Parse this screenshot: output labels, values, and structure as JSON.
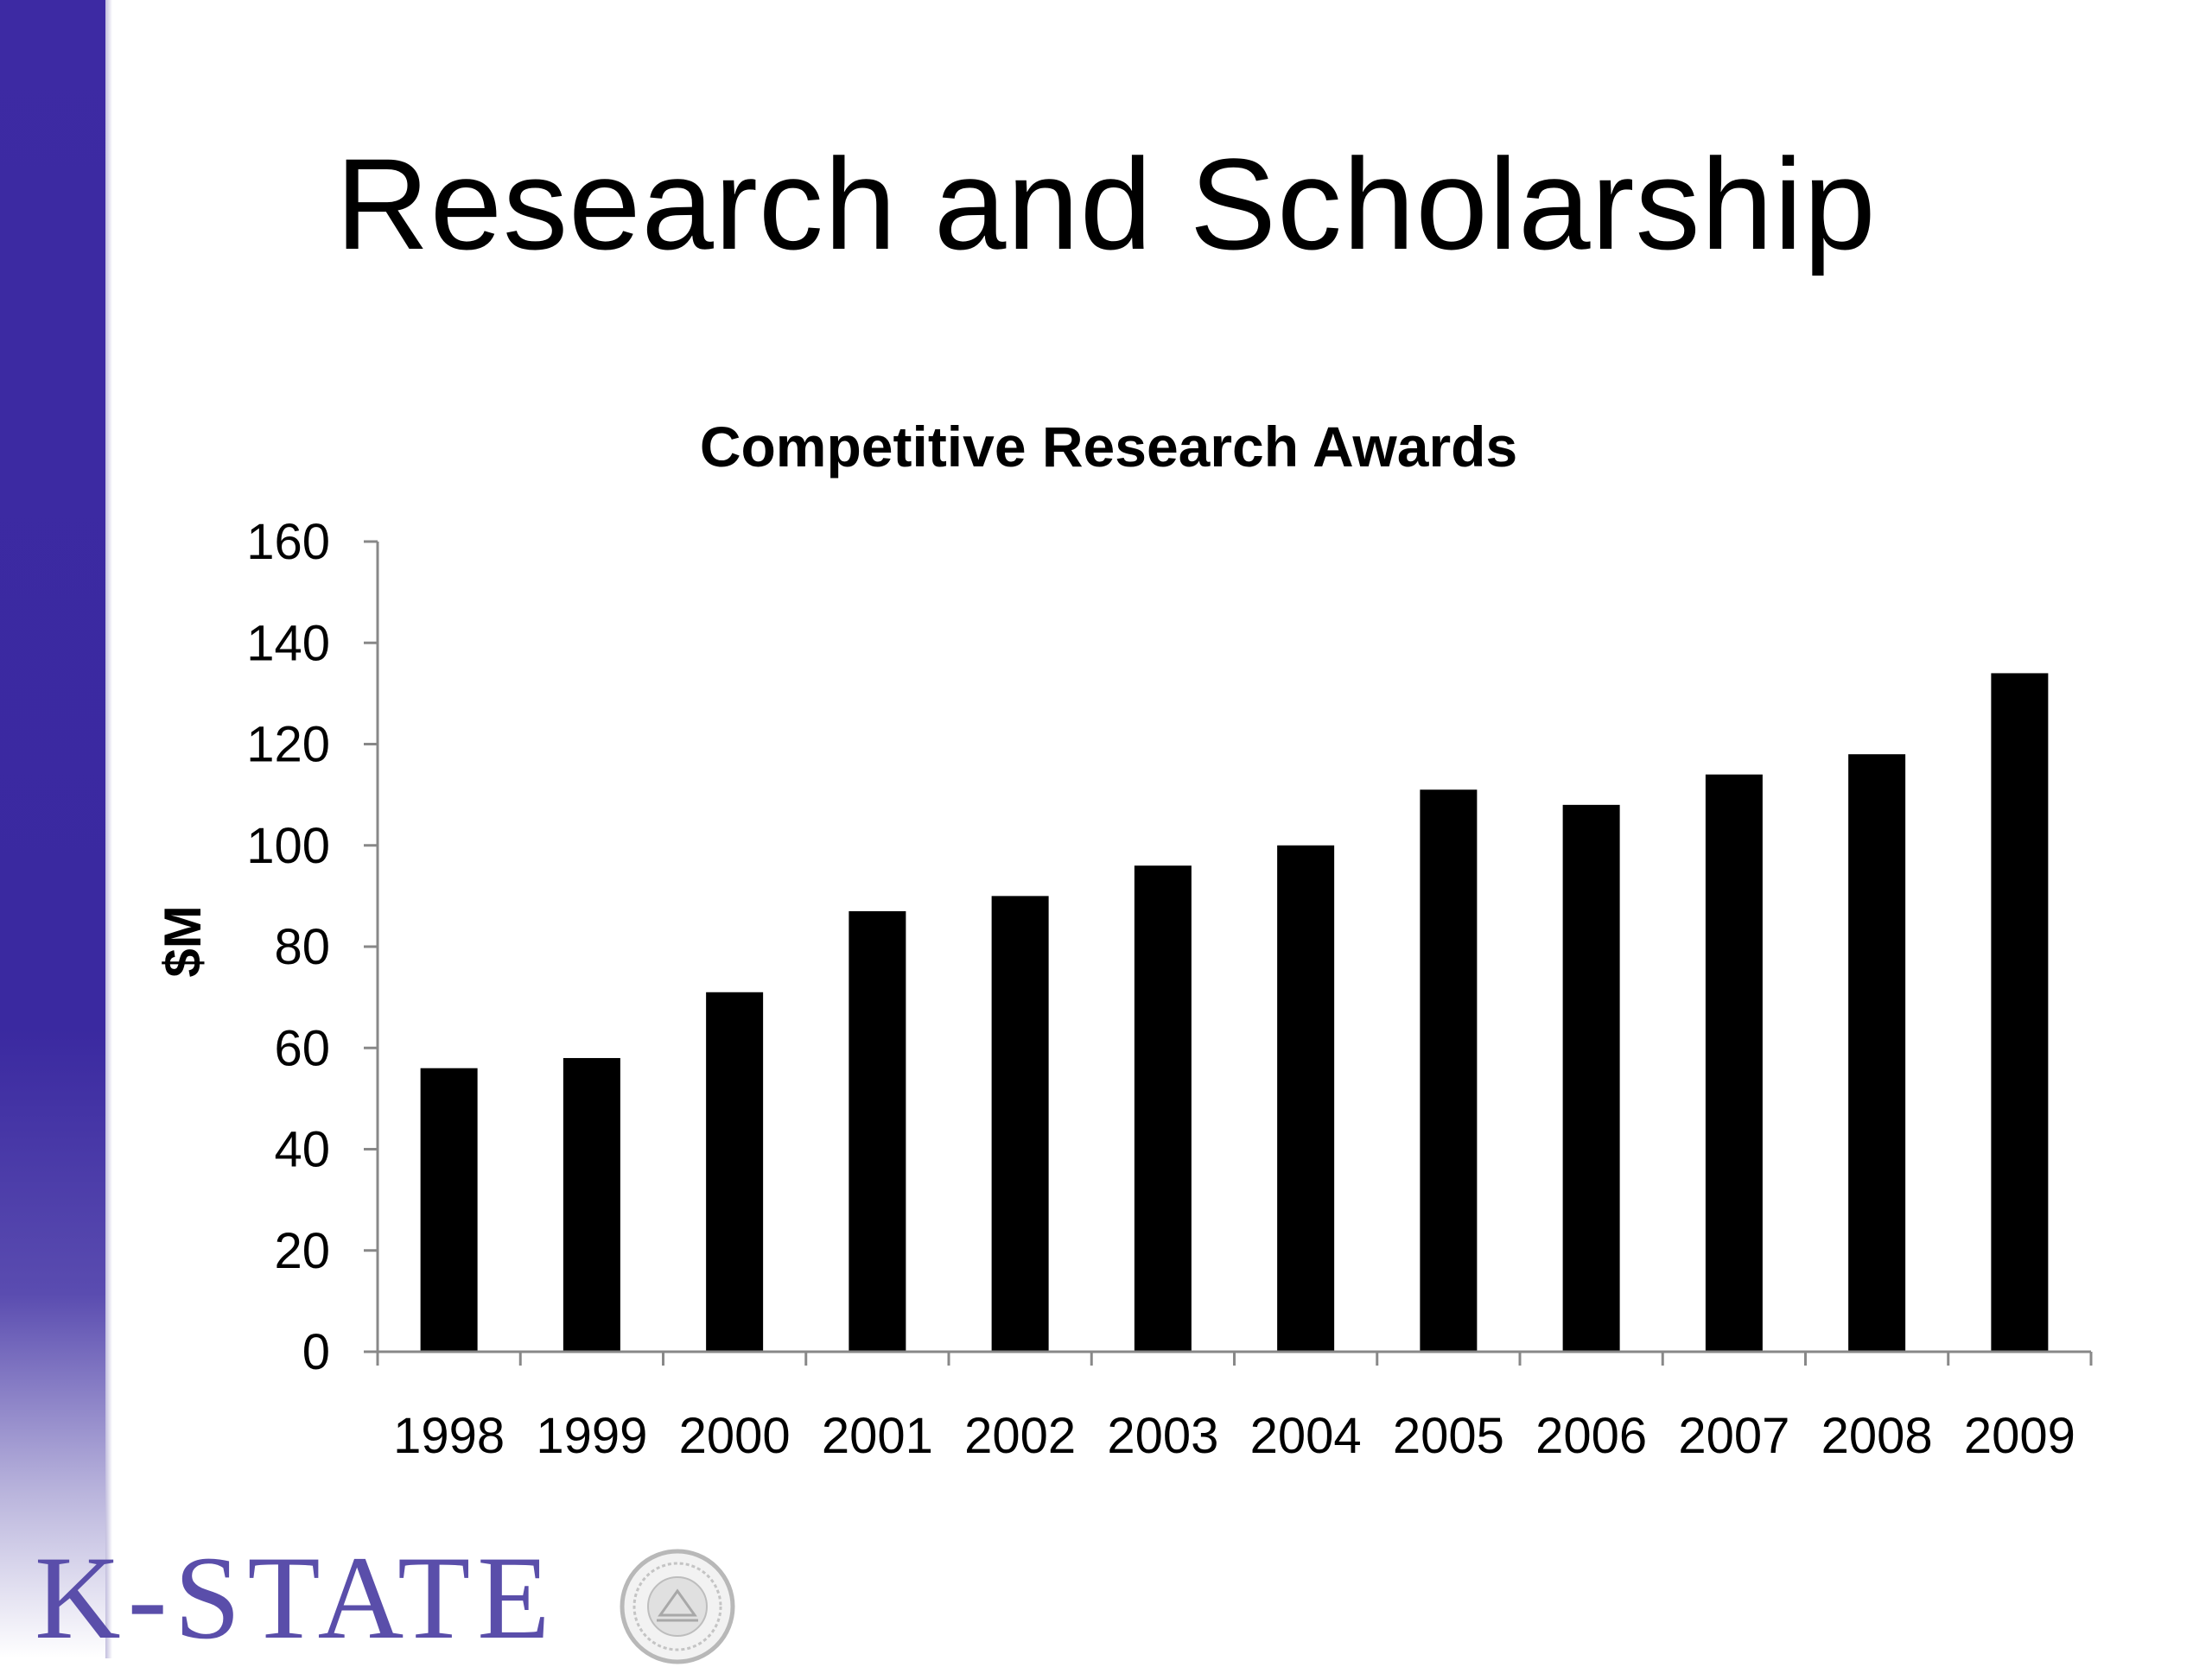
{
  "slide": {
    "title": "Research and Scholarship",
    "brand_text": "K-STATE",
    "accent_color": "#3d2aa3"
  },
  "chart_data": {
    "type": "bar",
    "title": "Competitive Research Awards",
    "xlabel": "",
    "ylabel": "$M",
    "ylim": [
      0,
      160
    ],
    "yticks": [
      0,
      20,
      40,
      60,
      80,
      100,
      120,
      140,
      160
    ],
    "categories": [
      "1998",
      "1999",
      "2000",
      "2001",
      "2002",
      "2003",
      "2004",
      "2005",
      "2006",
      "2007",
      "2008",
      "2009"
    ],
    "values": [
      56,
      58,
      71,
      87,
      90,
      96,
      100,
      111,
      108,
      114,
      118,
      134
    ],
    "bar_color": "#000000",
    "grid": false,
    "legend": "none"
  }
}
